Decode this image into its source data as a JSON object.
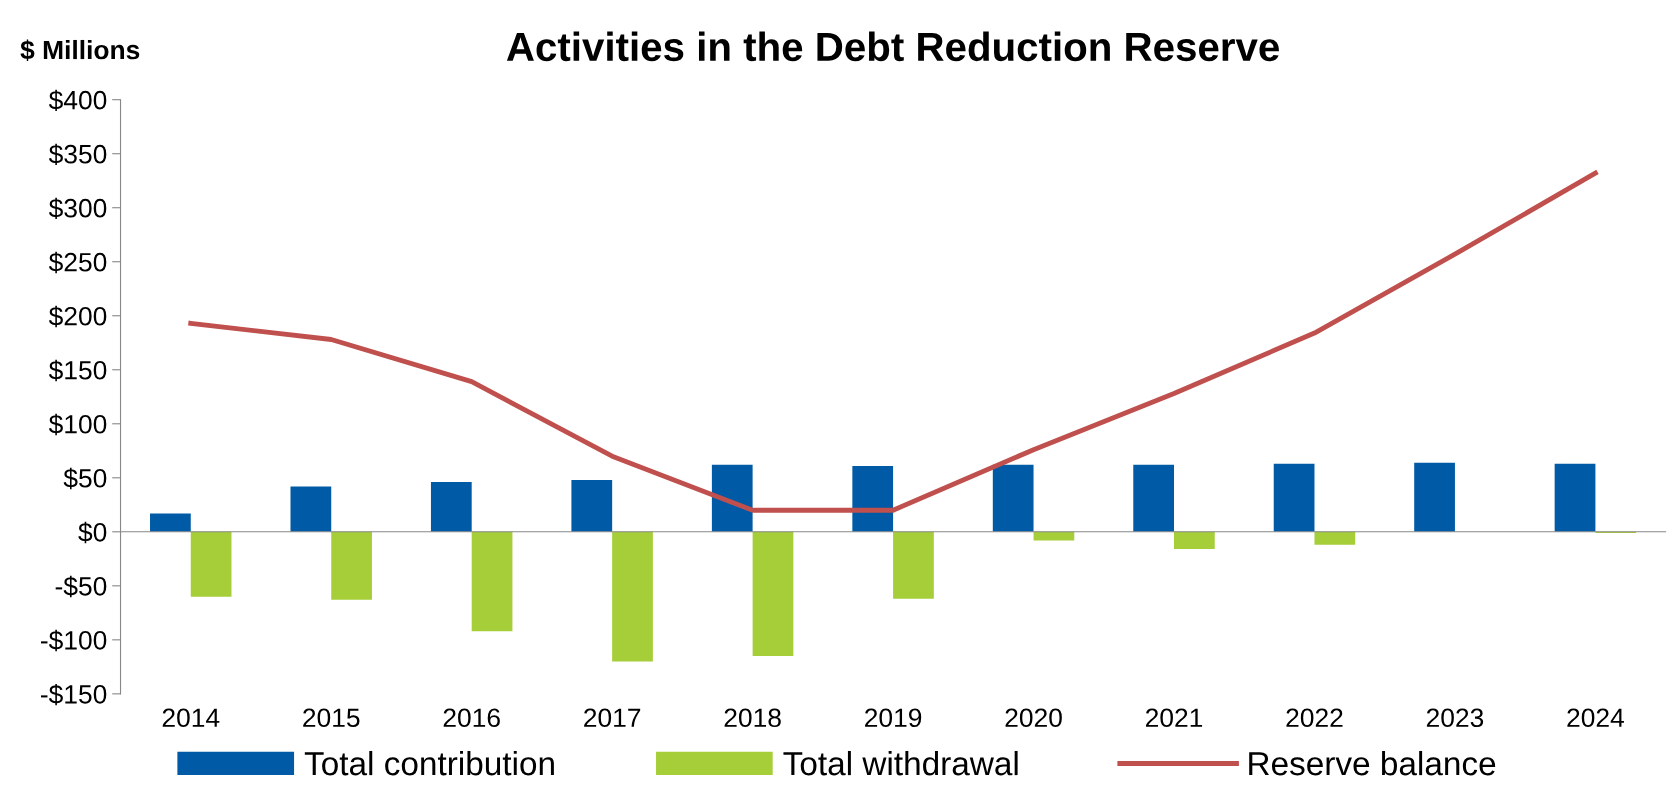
{
  "chart_data": {
    "type": "bar",
    "title": "Activities in the Debt Reduction Reserve",
    "ylabel": "$ Millions",
    "categories": [
      "2014",
      "2015",
      "2016",
      "2017",
      "2018",
      "2019",
      "2020",
      "2021",
      "2022",
      "2023",
      "2024"
    ],
    "series": [
      {
        "name": "Total contribution",
        "color": "#005aa5",
        "values": [
          17,
          42,
          46,
          48,
          62,
          61,
          62,
          62,
          63,
          64,
          63
        ]
      },
      {
        "name": "Total withdrawal",
        "color": "#a6ce39",
        "values": [
          -60,
          -63,
          -92,
          -120,
          -115,
          -62,
          -8,
          -16,
          -12,
          0,
          -1
        ]
      },
      {
        "name": "Reserve balance",
        "type": "line",
        "color": "#c0504d",
        "values": [
          193,
          178,
          139,
          70,
          20,
          20,
          76,
          128,
          184,
          257,
          332
        ]
      }
    ],
    "ylim": [
      -150,
      400
    ],
    "yticks": [
      {
        "value": -150,
        "label": "-$150"
      },
      {
        "value": -100,
        "label": "-$100"
      },
      {
        "value": -50,
        "label": "-$50"
      },
      {
        "value": 0,
        "label": "$0"
      },
      {
        "value": 50,
        "label": "$50"
      },
      {
        "value": 100,
        "label": "$100"
      },
      {
        "value": 150,
        "label": "$150"
      },
      {
        "value": 200,
        "label": "$200"
      },
      {
        "value": 250,
        "label": "$250"
      },
      {
        "value": 300,
        "label": "$300"
      },
      {
        "value": 350,
        "label": "$350"
      },
      {
        "value": 400,
        "label": "$400"
      }
    ],
    "legend": "bottom",
    "marker": "none",
    "line_style": "solid"
  }
}
